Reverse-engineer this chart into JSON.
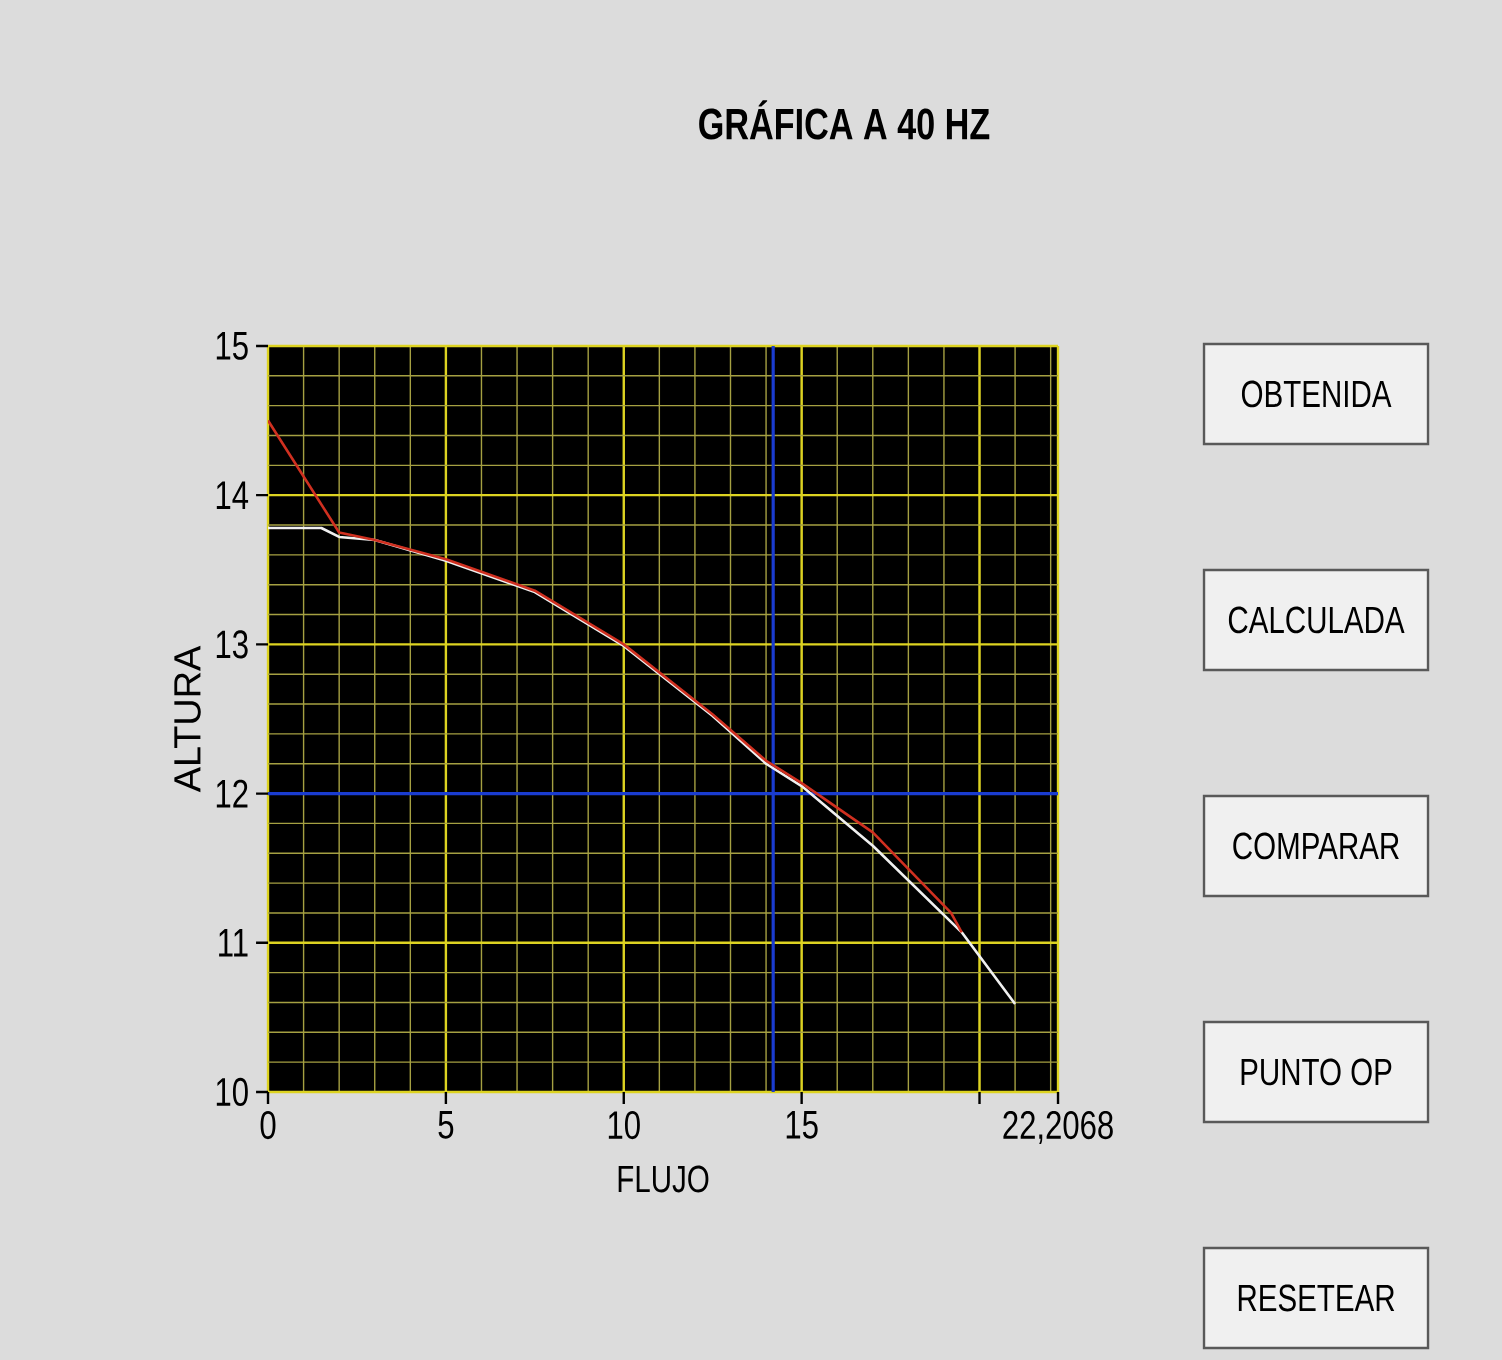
{
  "chart_data": {
    "type": "line",
    "title": "GRÁFICA A 40 HZ",
    "xlabel": "FLUJO",
    "ylabel": "ALTURA",
    "xlim": [
      0,
      22.2068
    ],
    "ylim": [
      10,
      15
    ],
    "xticks": [
      0,
      5,
      10,
      15,
      {
        "value": 20,
        "label": null
      },
      {
        "value": 22.2068,
        "label": "22,2068"
      }
    ],
    "yticks": [
      10,
      11,
      12,
      13,
      14,
      15
    ],
    "grid": true,
    "series": [
      {
        "color": "#f0f0f0",
        "x": [
          0,
          1.5,
          2,
          3,
          5,
          7.5,
          10,
          12.5,
          14,
          15,
          17,
          19.5,
          21
        ],
        "values": [
          13.78,
          13.78,
          13.72,
          13.7,
          13.56,
          13.35,
          12.99,
          12.52,
          12.2,
          12.05,
          11.65,
          11.07,
          10.59
        ]
      },
      {
        "color": "#d03020",
        "x": [
          0,
          2,
          3,
          5,
          7.5,
          10,
          12.5,
          14,
          15,
          17,
          19.2,
          19.5
        ],
        "values": [
          14.5,
          13.75,
          13.7,
          13.57,
          13.36,
          13.0,
          12.53,
          12.22,
          12.07,
          11.74,
          11.2,
          11.07
        ]
      }
    ],
    "ref_lines": [
      {
        "axis": "x",
        "value": 14.2,
        "color": "#1a3cd0"
      },
      {
        "axis": "y",
        "value": 12,
        "color": "#1a3cd0"
      }
    ],
    "annotations": [
      "OBTENIDA",
      "CALCULADA",
      "COMPARAR",
      "PUNTO OP",
      "RESETEAR"
    ]
  }
}
